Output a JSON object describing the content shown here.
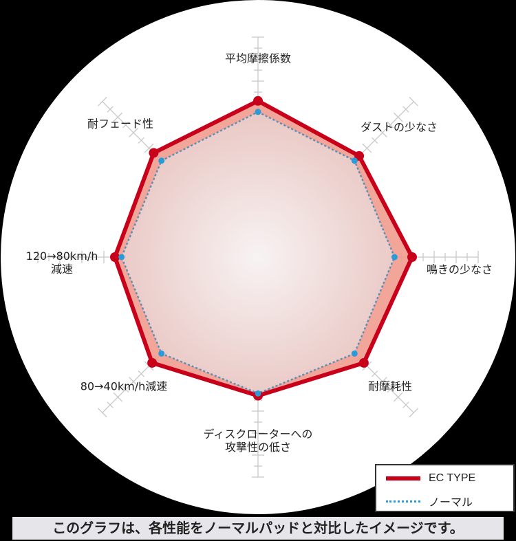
{
  "chart_data": {
    "type": "radar",
    "axes": [
      "平均摩擦係数",
      "ダストの少なさ",
      "鳴きの少なさ",
      "耐摩耗性",
      "ディスクローターへの\n攻撃性の低さ",
      "80→40km/h減速",
      "120→80km/h\n減速",
      "耐フェード性"
    ],
    "axis_labels": {
      "friction": "平均摩擦係数",
      "dust": "ダストの少なさ",
      "squeal": "鳴きの少なさ",
      "wear": "耐摩耗性",
      "rotor_1": "ディスクローターへの",
      "rotor_2": "攻撃性の低さ",
      "decel_80_40": "80→40km/h減速",
      "decel_120_80_1": "120→80km/h",
      "decel_120_80_2": "減速",
      "fade": "耐フェード性"
    },
    "range": [
      0,
      10
    ],
    "series": [
      {
        "name": "EC TYPE",
        "color": "#c8001a",
        "values": [
          7.1,
          6.5,
          7.0,
          6.8,
          6.3,
          6.8,
          6.5,
          6.7
        ]
      },
      {
        "name": "ノーマル",
        "color": "#2a9ad8",
        "values": [
          6.6,
          6.2,
          6.2,
          6.2,
          6.2,
          6.2,
          6.2,
          6.2
        ]
      }
    ],
    "legend_position": "bottom-right"
  },
  "caption": "このグラフは、各性能をノーマルパッドと対比したイメージです。"
}
